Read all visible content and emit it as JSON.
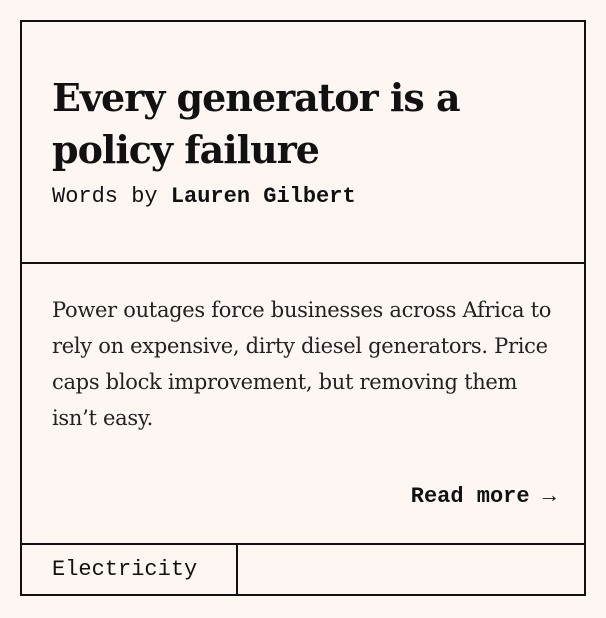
{
  "article": {
    "title": "Every generator is a policy failure",
    "byline_prefix": "Words by",
    "author": "Lauren Gilbert",
    "summary": "Power outages force businesses across Africa to rely on expensive, dirty diesel generators. Price caps block improvement, but removing them isn’t easy.",
    "read_more_label": "Read more →",
    "tag": "Electricity"
  },
  "colors": {
    "background": "#fdf6f3",
    "border": "#111111",
    "text": "#111111"
  }
}
